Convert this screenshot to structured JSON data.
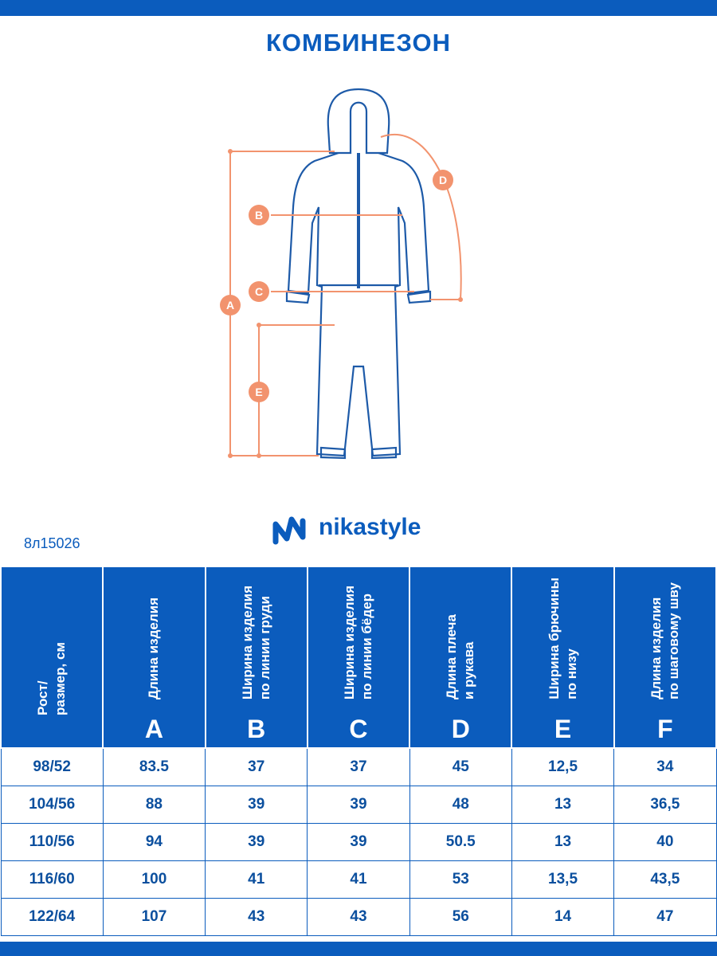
{
  "header": {
    "title": "КОМБИНЕЗОН"
  },
  "diagram": {
    "labels": [
      "A",
      "B",
      "C",
      "D",
      "E"
    ]
  },
  "brand": "nikastyle",
  "article": "8л15026",
  "table": {
    "columns": [
      {
        "lines": [
          "Рост/",
          "размер, см"
        ]
      },
      {
        "lines": [
          "Длина изделия"
        ],
        "letter": "A"
      },
      {
        "lines": [
          "Ширина изделия",
          "по линии груди"
        ],
        "letter": "B"
      },
      {
        "lines": [
          "Ширина изделия",
          "по линии бёдер"
        ],
        "letter": "C"
      },
      {
        "lines": [
          "Длина плеча",
          "и рукава"
        ],
        "letter": "D"
      },
      {
        "lines": [
          "Ширина брючины",
          "по низу"
        ],
        "letter": "E"
      },
      {
        "lines": [
          "Длина изделия",
          "по шаговому шву"
        ],
        "letter": "F"
      }
    ],
    "rows": [
      [
        "98/52",
        "83.5",
        "37",
        "37",
        "45",
        "12,5",
        "34"
      ],
      [
        "104/56",
        "88",
        "39",
        "39",
        "48",
        "13",
        "36,5"
      ],
      [
        "110/56",
        "94",
        "39",
        "39",
        "50.5",
        "13",
        "40"
      ],
      [
        "116/60",
        "100",
        "41",
        "41",
        "53",
        "13,5",
        "43,5"
      ],
      [
        "122/64",
        "107",
        "43",
        "43",
        "56",
        "14",
        "47"
      ]
    ]
  }
}
